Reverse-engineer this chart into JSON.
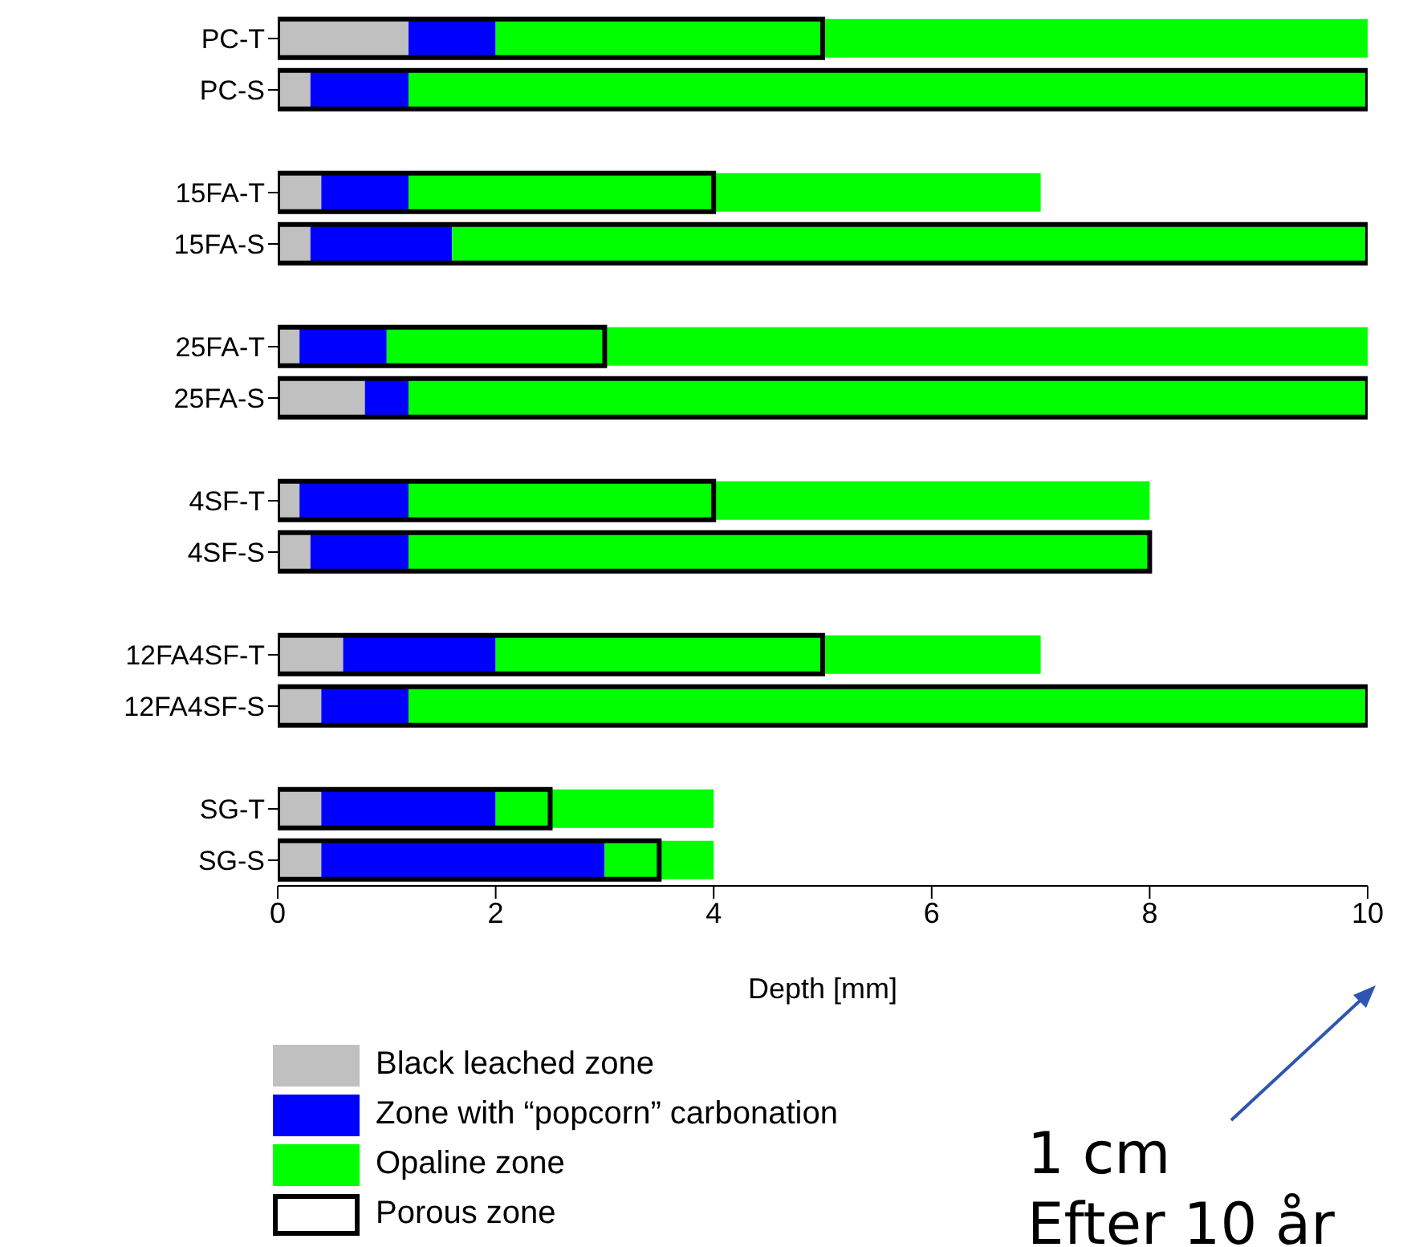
{
  "chart_data": {
    "type": "bar",
    "orientation": "horizontal",
    "categories": [
      "PC-T",
      "PC-S",
      null,
      "15FA-T",
      "15FA-S",
      null,
      "25FA-T",
      "25FA-S",
      null,
      "4SF-T",
      "4SF-S",
      null,
      "12FA4SF-T",
      "12FA4SF-S",
      null,
      "SG-T",
      "SG-S"
    ],
    "series": [
      {
        "name": "Black leached zone",
        "color": "#c0c0c0",
        "base": [
          0,
          0,
          null,
          0,
          0,
          null,
          0,
          0,
          null,
          0,
          0,
          null,
          0,
          0,
          null,
          0,
          0
        ],
        "values": [
          1.2,
          0.3,
          null,
          0.4,
          0.3,
          null,
          0.2,
          0.8,
          null,
          0.2,
          0.3,
          null,
          0.6,
          0.4,
          null,
          0.4,
          0.4
        ]
      },
      {
        "name": "Zone with “popcorn” carbonation",
        "color": "#0000ff",
        "base": [
          1.2,
          0.3,
          null,
          0.4,
          0.3,
          null,
          0.2,
          0.8,
          null,
          0.2,
          0.3,
          null,
          0.6,
          0.4,
          null,
          0.4,
          0.4
        ],
        "values": [
          0.8,
          0.9,
          null,
          0.8,
          1.3,
          null,
          0.8,
          0.4,
          null,
          1.0,
          0.9,
          null,
          1.4,
          0.8,
          null,
          1.6,
          2.6
        ]
      },
      {
        "name": "Opaline zone",
        "color": "#00ff00",
        "base": [
          2.0,
          1.2,
          null,
          1.2,
          1.6,
          null,
          1.0,
          1.2,
          null,
          1.2,
          1.2,
          null,
          2.0,
          1.2,
          null,
          2.0,
          3.0
        ],
        "values": [
          8.0,
          8.8,
          null,
          5.8,
          8.4,
          null,
          9.0,
          8.8,
          null,
          6.8,
          6.8,
          null,
          5.0,
          8.8,
          null,
          2.0,
          1.0
        ]
      },
      {
        "name": "Porous zone",
        "color": "#000000",
        "line_style": "solid",
        "base": [
          0,
          0,
          null,
          0,
          0,
          null,
          0,
          0,
          null,
          0,
          0,
          null,
          0,
          0,
          null,
          0,
          0
        ],
        "values": [
          5,
          10,
          null,
          4,
          10,
          null,
          3,
          10,
          null,
          4,
          8,
          null,
          5,
          10,
          null,
          2.5,
          3.5
        ]
      }
    ],
    "xlim": [
      0,
      10
    ],
    "xticks": [
      0,
      2,
      4,
      6,
      8,
      10
    ],
    "xlabel": "Depth [mm]",
    "grid": false,
    "legend": "bottom left",
    "annotations": [
      "1 cm",
      "Efter 10 år"
    ]
  }
}
